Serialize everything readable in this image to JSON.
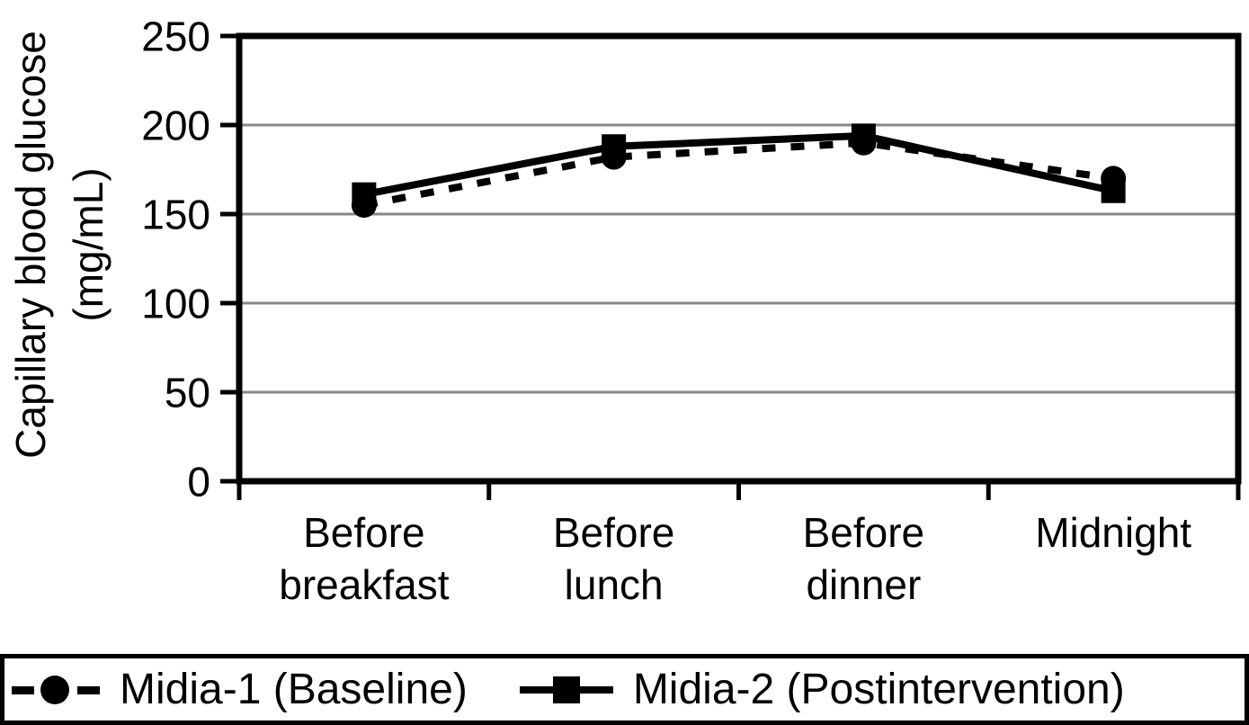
{
  "chart_data": {
    "type": "line",
    "categories": [
      "Before breakfast",
      "Before lunch",
      "Before dinner",
      "Midnight"
    ],
    "series": [
      {
        "name": "Midia-1 (Baseline)",
        "values": [
          155,
          182,
          190,
          170
        ],
        "line_style": "dashed",
        "marker": "circle"
      },
      {
        "name": "Midia-2 (Postintervention)",
        "values": [
          161,
          188,
          194,
          163
        ],
        "line_style": "solid",
        "marker": "square"
      }
    ],
    "title": "",
    "xlabel": "",
    "ylabel_line1": "Capillary blood glucose",
    "ylabel_line2": "(mg/mL)",
    "ylim": [
      0,
      250
    ],
    "yticks": [
      0,
      50,
      100,
      150,
      200,
      250
    ],
    "grid": "horizontal-gray-lines",
    "legend_position": "bottom-full-width-box",
    "colors": {
      "series": "#000000",
      "grid": "#878787",
      "frame": "#000000",
      "background": "#ffffff"
    }
  }
}
